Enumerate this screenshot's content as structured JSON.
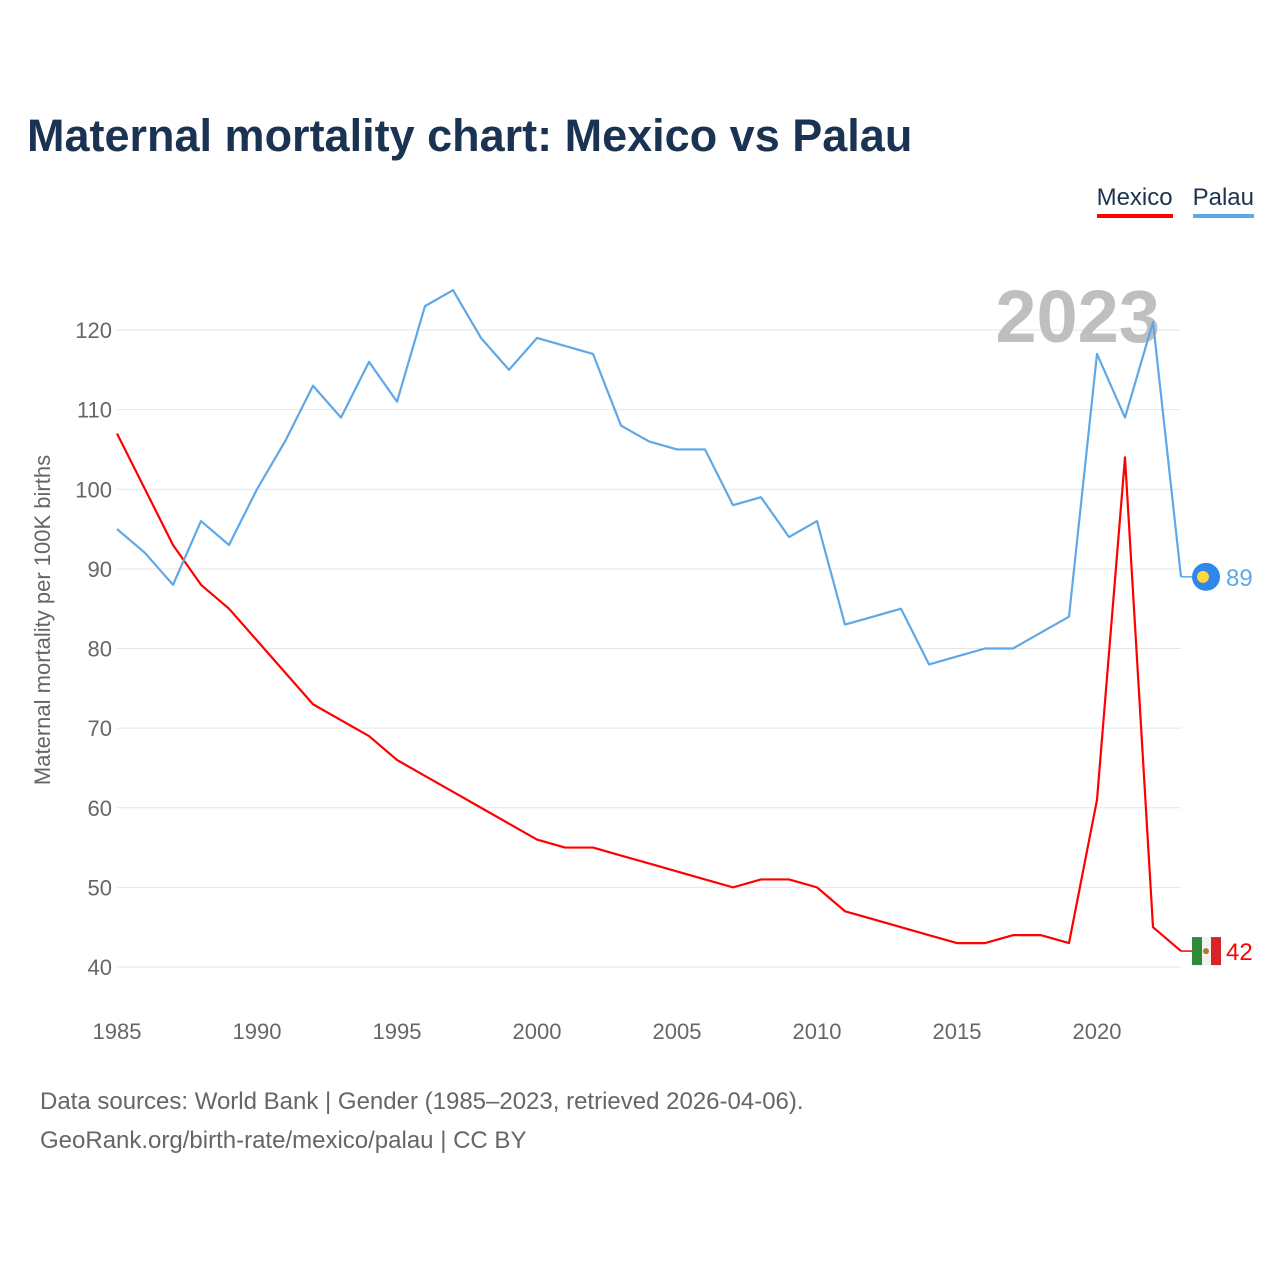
{
  "title": "Maternal mortality chart: Mexico vs Palau",
  "chart_data": {
    "type": "line",
    "title": "Maternal mortality chart: Mexico vs Palau",
    "xlabel": "",
    "ylabel": "Maternal mortality per 100K births",
    "xlim": [
      1985,
      2023
    ],
    "ylim": [
      40,
      125
    ],
    "x_ticks": [
      "1985",
      "1990",
      "1995",
      "2000",
      "2005",
      "2010",
      "2015",
      "2020"
    ],
    "y_ticks": [
      "40",
      "50",
      "60",
      "70",
      "80",
      "90",
      "100",
      "110",
      "120"
    ],
    "year_label": "2023",
    "legend_position": "top-right",
    "x": [
      1985,
      1986,
      1987,
      1988,
      1989,
      1990,
      1991,
      1992,
      1993,
      1994,
      1995,
      1996,
      1997,
      1998,
      1999,
      2000,
      2001,
      2002,
      2003,
      2004,
      2005,
      2006,
      2007,
      2008,
      2009,
      2010,
      2011,
      2012,
      2013,
      2014,
      2015,
      2016,
      2017,
      2018,
      2019,
      2020,
      2021,
      2022,
      2023
    ],
    "series": [
      {
        "name": "Mexico",
        "color": "#ff0000",
        "end_label": "42",
        "values": [
          107,
          100,
          93,
          88,
          85,
          81,
          77,
          73,
          71,
          69,
          66,
          64,
          62,
          60,
          58,
          56,
          55,
          55,
          54,
          53,
          52,
          51,
          50,
          51,
          51,
          50,
          47,
          46,
          45,
          44,
          43,
          43,
          44,
          44,
          43,
          61,
          104,
          45,
          42
        ]
      },
      {
        "name": "Palau",
        "color": "#5ea8e8",
        "end_label": "89",
        "values": [
          95,
          92,
          88,
          96,
          93,
          100,
          106,
          113,
          109,
          116,
          111,
          123,
          125,
          119,
          115,
          119,
          118,
          117,
          108,
          106,
          105,
          105,
          98,
          99,
          94,
          96,
          83,
          84,
          85,
          78,
          79,
          80,
          80,
          82,
          84,
          117,
          109,
          121,
          89
        ]
      }
    ]
  },
  "footer": {
    "line1": "Data sources: World Bank | Gender (1985–2023, retrieved 2026-04-06).",
    "line2": "GeoRank.org/birth-rate/mexico/palau | CC BY"
  }
}
